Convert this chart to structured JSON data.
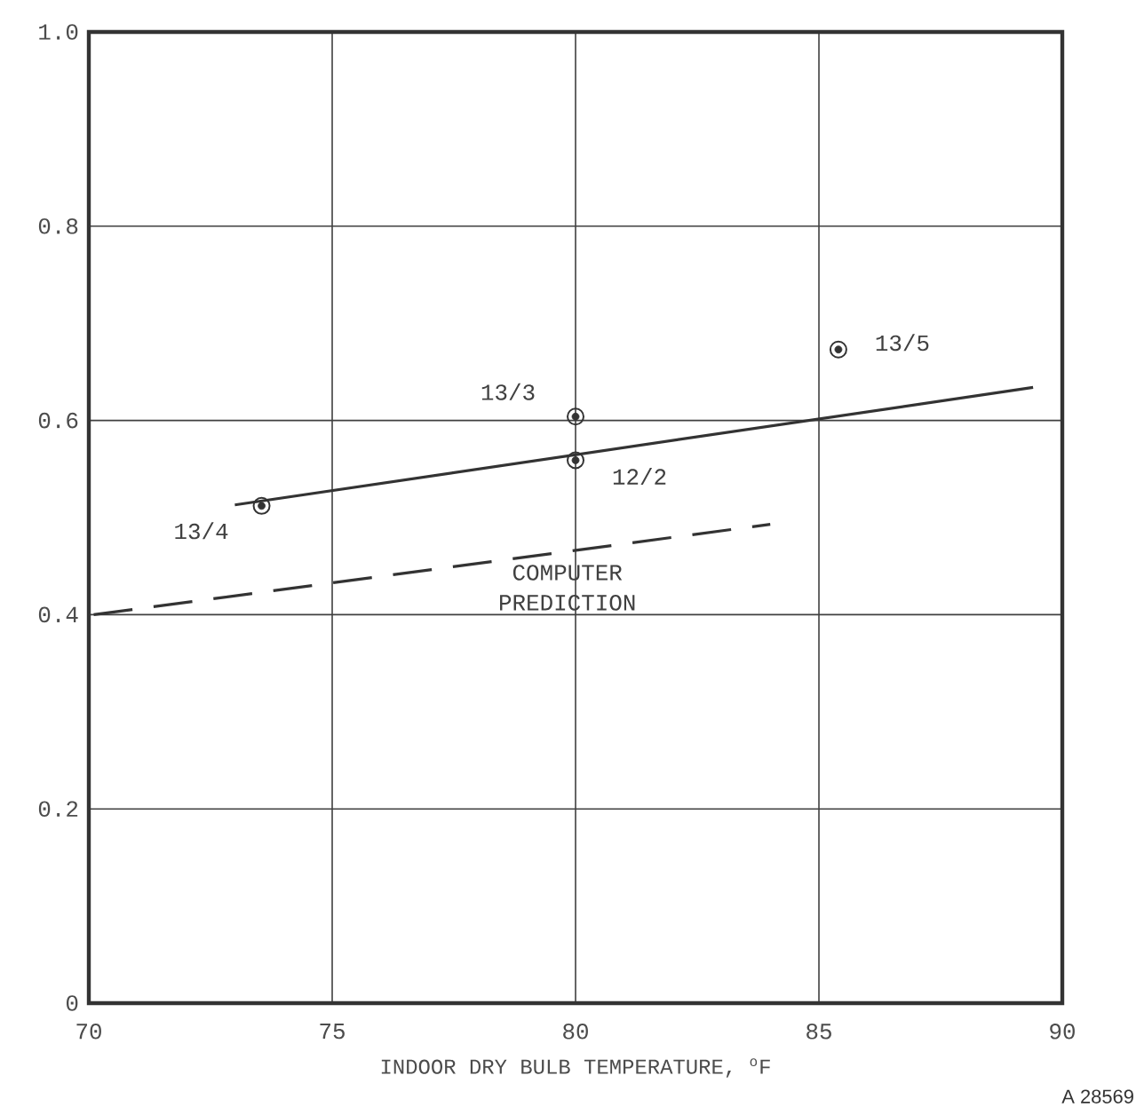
{
  "chart_data": {
    "type": "scatter",
    "xlabel": "INDOOR DRY BULB TEMPERATURE, $^{o}$F",
    "xlim": [
      70,
      90
    ],
    "xticks": [
      70,
      75,
      80,
      85,
      90
    ],
    "ylim": [
      0,
      1.0
    ],
    "yticks": [
      {
        "value": 0,
        "label": "0"
      },
      {
        "value": 0.2,
        "label": "0.2"
      },
      {
        "value": 0.4,
        "label": "0.4"
      },
      {
        "value": 0.6,
        "label": "0.6"
      },
      {
        "value": 0.8,
        "label": "0.8"
      },
      {
        "value": 1.0,
        "label": "1.0"
      }
    ],
    "grid": true,
    "series": [
      {
        "marker": "circle",
        "color": "#333333",
        "x": [
          73.55,
          80,
          80,
          85.4
        ],
        "values": [
          0.512,
          0.604,
          0.559,
          0.673
        ]
      },
      {
        "type": "line",
        "marker": "none",
        "color": "#333333",
        "line_style": "solid",
        "x": [
          73.0,
          89.4
        ],
        "values": [
          0.513,
          0.634
        ]
      },
      {
        "type": "line",
        "marker": "none",
        "name": "COMPUTER PREDICTION",
        "color": "#333333",
        "line_style": "dashed",
        "x": [
          70.1,
          84.0
        ],
        "values": [
          0.4,
          0.493
        ]
      }
    ],
    "annotations": [
      "13/4",
      "13/3",
      "12/2",
      "13/5",
      "A 28569"
    ]
  }
}
